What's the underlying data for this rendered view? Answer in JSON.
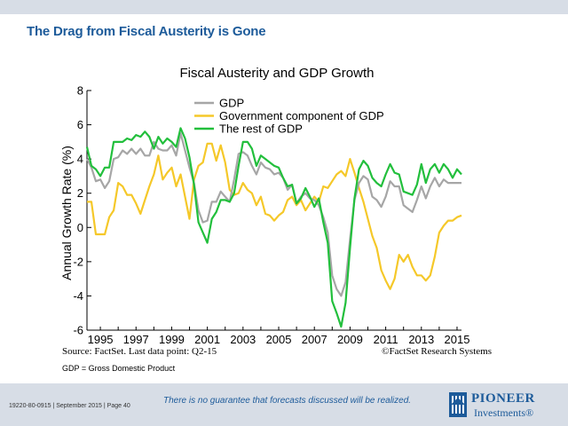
{
  "slide": {
    "title": "The Drag from Fiscal Austerity is Gone",
    "source": "Source: FactSet. Last data point: Q2-15",
    "copyright": "©FactSet Research Systems",
    "footnote": "GDP = Gross Domestic Product",
    "disclaimer": "There is no guarantee that forecasts discussed will be realized.",
    "job_code": "19220-80-0915 | September 2015 | Page 40",
    "logo_top": "PIONEER",
    "logo_bottom": "Investments®",
    "logo_icon": "pioneer-logo-icon"
  },
  "chart_data": {
    "type": "line",
    "title": "Fiscal Austerity and GDP Growth",
    "ylabel": "Annual Growth Rate (%)",
    "xlabel": "",
    "ylim": [
      -6,
      8
    ],
    "xlim": [
      1994.25,
      2015.25
    ],
    "yticks": [
      "8",
      "6",
      "4",
      "2",
      "0",
      "-2",
      "-4",
      "-6"
    ],
    "xticks": [
      "1995",
      "1997",
      "1999",
      "2001",
      "2003",
      "2005",
      "2007",
      "2009",
      "2011",
      "2013",
      "2015"
    ],
    "grid": false,
    "legend": "top-center",
    "colors": {
      "gdp": "#a6a6a6",
      "gov": "#f5c829",
      "rest": "#22bf3c"
    },
    "x": [
      1994.25,
      1994.5,
      1994.75,
      1995,
      1995.25,
      1995.5,
      1995.75,
      1996,
      1996.25,
      1996.5,
      1996.75,
      1997,
      1997.25,
      1997.5,
      1997.75,
      1998,
      1998.25,
      1998.5,
      1998.75,
      1999,
      1999.25,
      1999.5,
      1999.75,
      2000,
      2000.25,
      2000.5,
      2000.75,
      2001,
      2001.25,
      2001.5,
      2001.75,
      2002,
      2002.25,
      2002.5,
      2002.75,
      2003,
      2003.25,
      2003.5,
      2003.75,
      2004,
      2004.25,
      2004.5,
      2004.75,
      2005,
      2005.25,
      2005.5,
      2005.75,
      2006,
      2006.25,
      2006.5,
      2006.75,
      2007,
      2007.25,
      2007.5,
      2007.75,
      2008,
      2008.25,
      2008.5,
      2008.75,
      2009,
      2009.25,
      2009.5,
      2009.75,
      2010,
      2010.25,
      2010.5,
      2010.75,
      2011,
      2011.25,
      2011.5,
      2011.75,
      2012,
      2012.25,
      2012.5,
      2012.75,
      2013,
      2013.25,
      2013.5,
      2013.75,
      2014,
      2014.25,
      2014.5,
      2014.75,
      2015,
      2015.25
    ],
    "series": [
      {
        "name": "GDP",
        "key": "gdp",
        "values": [
          4.0,
          3.5,
          2.7,
          2.8,
          2.3,
          2.7,
          4.0,
          4.1,
          4.5,
          4.3,
          4.6,
          4.3,
          4.6,
          4.2,
          4.2,
          5.0,
          4.6,
          4.5,
          4.5,
          4.8,
          4.2,
          5.5,
          4.5,
          3.5,
          2.6,
          1.0,
          0.3,
          0.4,
          1.5,
          1.5,
          2.1,
          1.8,
          1.5,
          2.8,
          4.3,
          4.4,
          4.2,
          3.6,
          3.1,
          3.8,
          3.5,
          3.4,
          3.1,
          3.2,
          2.9,
          2.2,
          2.5,
          1.4,
          1.8,
          2.0,
          1.7,
          1.6,
          1.3,
          0.6,
          -0.3,
          -2.8,
          -3.6,
          -4.0,
          -3.2,
          -0.7,
          1.6,
          2.6,
          3.0,
          2.8,
          1.8,
          1.6,
          1.2,
          1.8,
          2.7,
          2.4,
          2.4,
          1.3,
          1.1,
          0.9,
          1.6,
          2.4,
          1.7,
          2.4,
          2.9,
          2.4,
          2.8,
          2.6,
          2.6,
          2.6,
          2.6
        ]
      },
      {
        "name": "Government component of GDP",
        "key": "gov",
        "values": [
          1.5,
          1.5,
          -0.4,
          -0.4,
          -0.4,
          0.6,
          1.0,
          2.6,
          2.4,
          1.9,
          1.9,
          1.4,
          0.8,
          1.6,
          2.4,
          3.1,
          4.2,
          2.8,
          3.2,
          3.5,
          2.4,
          3.1,
          1.8,
          0.5,
          2.8,
          3.6,
          3.8,
          4.9,
          4.9,
          3.9,
          4.8,
          3.8,
          2.2,
          1.9,
          2.0,
          2.6,
          2.2,
          2.0,
          1.3,
          1.8,
          0.8,
          0.7,
          0.4,
          0.7,
          0.9,
          1.6,
          1.8,
          1.3,
          1.6,
          1.0,
          1.4,
          1.8,
          1.5,
          2.4,
          2.3,
          2.7,
          3.1,
          3.3,
          3.0,
          4.0,
          3.2,
          2.3,
          1.5,
          0.5,
          -0.5,
          -1.2,
          -2.5,
          -3.1,
          -3.6,
          -3.0,
          -1.6,
          -2.0,
          -1.6,
          -2.3,
          -2.8,
          -2.8,
          -3.1,
          -2.8,
          -1.7,
          -0.3,
          0.1,
          0.4,
          0.4,
          0.6,
          0.7
        ]
      },
      {
        "name": "The rest of GDP",
        "key": "rest",
        "values": [
          4.7,
          3.6,
          3.4,
          3.0,
          3.5,
          3.5,
          5.0,
          5.0,
          5.0,
          5.2,
          5.1,
          5.4,
          5.3,
          5.6,
          5.3,
          4.6,
          5.3,
          4.9,
          5.2,
          5.0,
          4.7,
          5.8,
          5.2,
          4.1,
          2.5,
          0.3,
          -0.3,
          -0.9,
          0.5,
          0.9,
          1.6,
          1.6,
          1.5,
          2.0,
          3.6,
          5.0,
          5.0,
          4.6,
          3.6,
          4.2,
          4.0,
          3.8,
          3.6,
          3.5,
          2.9,
          2.4,
          2.5,
          1.4,
          1.7,
          2.3,
          1.8,
          1.2,
          1.7,
          0.3,
          -0.9,
          -4.3,
          -5.0,
          -5.8,
          -4.4,
          -1.2,
          1.7,
          3.4,
          3.9,
          3.6,
          2.9,
          2.6,
          2.4,
          3.1,
          3.7,
          3.2,
          3.1,
          2.1,
          2.0,
          1.9,
          2.5,
          3.7,
          2.6,
          3.4,
          3.7,
          3.2,
          3.7,
          3.4,
          2.9,
          3.4,
          3.1
        ]
      }
    ]
  }
}
